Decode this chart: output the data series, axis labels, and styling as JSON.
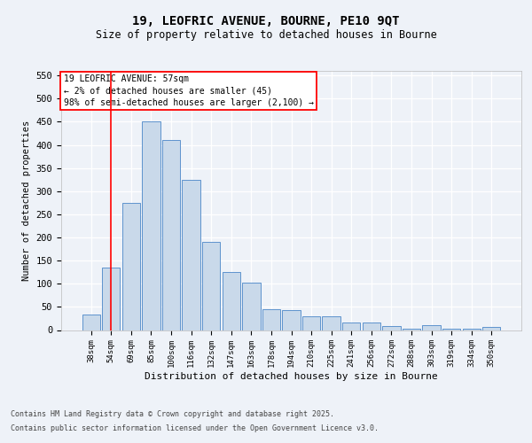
{
  "title1": "19, LEOFRIC AVENUE, BOURNE, PE10 9QT",
  "title2": "Size of property relative to detached houses in Bourne",
  "xlabel": "Distribution of detached houses by size in Bourne",
  "ylabel": "Number of detached properties",
  "categories": [
    "38sqm",
    "54sqm",
    "69sqm",
    "85sqm",
    "100sqm",
    "116sqm",
    "132sqm",
    "147sqm",
    "163sqm",
    "178sqm",
    "194sqm",
    "210sqm",
    "225sqm",
    "241sqm",
    "256sqm",
    "272sqm",
    "288sqm",
    "303sqm",
    "319sqm",
    "334sqm",
    "350sqm"
  ],
  "values": [
    33,
    135,
    275,
    450,
    410,
    325,
    190,
    125,
    102,
    45,
    44,
    30,
    30,
    16,
    16,
    8,
    3,
    10,
    3,
    3,
    6
  ],
  "bar_color": "#c9d9ea",
  "bar_edge_color": "#4a86c8",
  "red_line_x": 1,
  "annotation_title": "19 LEOFRIC AVENUE: 57sqm",
  "annotation_line1": "← 2% of detached houses are smaller (45)",
  "annotation_line2": "98% of semi-detached houses are larger (2,100) →",
  "ylim": [
    0,
    560
  ],
  "yticks": [
    0,
    50,
    100,
    150,
    200,
    250,
    300,
    350,
    400,
    450,
    500,
    550
  ],
  "footer1": "Contains HM Land Registry data © Crown copyright and database right 2025.",
  "footer2": "Contains public sector information licensed under the Open Government Licence v3.0.",
  "bg_color": "#eef2f8",
  "plot_bg_color": "#eef2f8"
}
